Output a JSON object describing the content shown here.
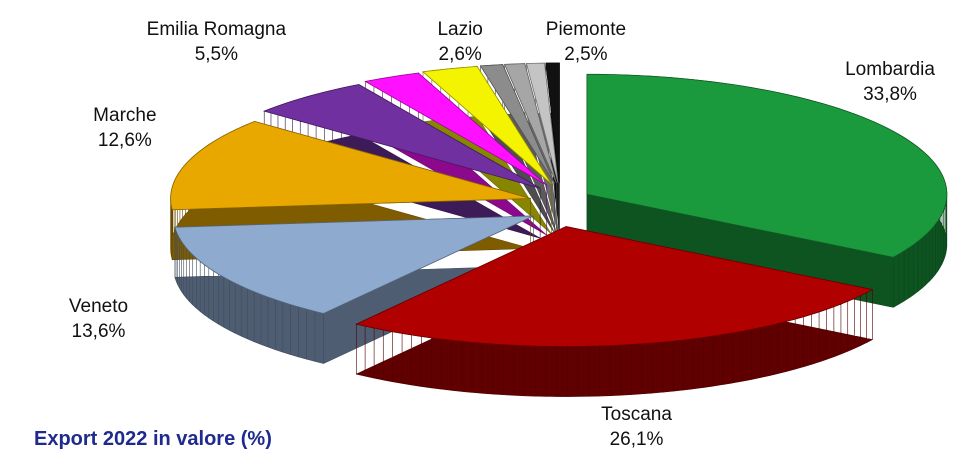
{
  "chart_data": {
    "type": "pie3d",
    "title": "Export 2022 in valore (%)",
    "categories": [
      "Lombardia",
      "Toscana",
      "Veneto",
      "Marche",
      "Emilia Romagna",
      "Lazio",
      "Piemonte",
      null,
      null,
      null,
      null
    ],
    "values": [
      33.8,
      26.1,
      13.6,
      12.6,
      5.5,
      2.6,
      2.5,
      1.0,
      0.9,
      0.8,
      0.6
    ],
    "value_labels": [
      "33,8%",
      "26,1%",
      "13,6%",
      "12,6%",
      "5,5%",
      "2,6%",
      "2,5%",
      null,
      null,
      null,
      null
    ],
    "colors": [
      "#1a9a3c",
      "#b00000",
      "#8eaacf",
      "#e8a800",
      "#7030a0",
      "#ff10ff",
      "#f4f400",
      "#8c8c8c",
      "#a6a6a6",
      "#c4c4c4",
      "#111111"
    ]
  }
}
